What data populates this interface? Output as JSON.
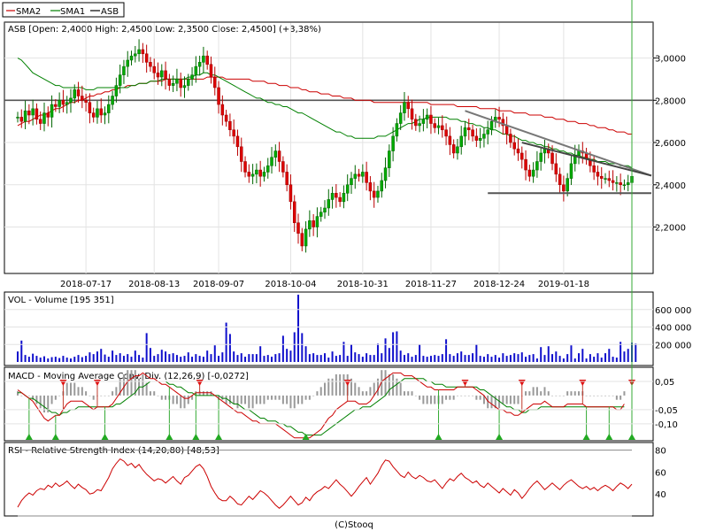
{
  "legend": [
    {
      "label": "SMA2",
      "color": "#cc0000"
    },
    {
      "label": "SMA1",
      "color": "#008000"
    },
    {
      "label": "ASB",
      "color": "#000000"
    }
  ],
  "footer": "(C)Stooq",
  "chart_data": [
    {
      "type": "candlestick",
      "title": "ASB [Open: 2,4000  High: 2,4500  Low: 2,3500  Close: 2,4500]  (+3,38%)",
      "ylim": [
        1.98,
        3.17
      ],
      "yticks": [
        {
          "v": 3.0,
          "label": "3,0000"
        },
        {
          "v": 2.8,
          "label": "2,8000"
        },
        {
          "v": 2.6,
          "label": "2,6000"
        },
        {
          "v": 2.4,
          "label": "2,4000"
        },
        {
          "v": 2.2,
          "label": "2,2000"
        }
      ],
      "xticks": [
        {
          "i": 18,
          "label": "2018-07-17"
        },
        {
          "i": 36,
          "label": "2018-08-13"
        },
        {
          "i": 53,
          "label": "2018-09-07"
        },
        {
          "i": 72,
          "label": "2018-10-04"
        },
        {
          "i": 91,
          "label": "2018-10-31"
        },
        {
          "i": 109,
          "label": "2018-11-27"
        },
        {
          "i": 127,
          "label": "2018-12-24"
        },
        {
          "i": 144,
          "label": "2019-01-18"
        }
      ],
      "n_points": 163,
      "close": [
        2.72,
        2.7,
        2.75,
        2.73,
        2.76,
        2.71,
        2.69,
        2.74,
        2.72,
        2.78,
        2.77,
        2.8,
        2.78,
        2.79,
        2.81,
        2.85,
        2.82,
        2.8,
        2.79,
        2.74,
        2.72,
        2.76,
        2.73,
        2.74,
        2.78,
        2.82,
        2.87,
        2.92,
        2.96,
        2.99,
        3.01,
        3.02,
        3.04,
        3.02,
        2.98,
        2.96,
        2.93,
        2.91,
        2.94,
        2.9,
        2.87,
        2.88,
        2.9,
        2.86,
        2.87,
        2.9,
        2.92,
        2.96,
        2.98,
        3.01,
        2.97,
        2.91,
        2.86,
        2.78,
        2.73,
        2.7,
        2.66,
        2.63,
        2.58,
        2.51,
        2.46,
        2.44,
        2.45,
        2.47,
        2.44,
        2.46,
        2.49,
        2.53,
        2.56,
        2.51,
        2.46,
        2.4,
        2.32,
        2.22,
        2.17,
        2.11,
        2.19,
        2.23,
        2.2,
        2.25,
        2.27,
        2.29,
        2.33,
        2.36,
        2.34,
        2.32,
        2.36,
        2.4,
        2.43,
        2.45,
        2.44,
        2.46,
        2.41,
        2.37,
        2.34,
        2.37,
        2.42,
        2.48,
        2.56,
        2.63,
        2.69,
        2.74,
        2.79,
        2.76,
        2.71,
        2.68,
        2.69,
        2.71,
        2.73,
        2.69,
        2.67,
        2.68,
        2.66,
        2.63,
        2.59,
        2.55,
        2.58,
        2.63,
        2.67,
        2.66,
        2.63,
        2.61,
        2.62,
        2.64,
        2.66,
        2.7,
        2.72,
        2.71,
        2.68,
        2.64,
        2.6,
        2.57,
        2.55,
        2.52,
        2.47,
        2.44,
        2.47,
        2.51,
        2.55,
        2.57,
        2.55,
        2.5,
        2.45,
        2.4,
        2.37,
        2.43,
        2.5,
        2.54,
        2.56,
        2.55,
        2.52,
        2.49,
        2.46,
        2.44,
        2.43,
        2.43,
        2.42,
        2.41,
        2.41,
        2.4,
        2.4,
        2.41,
        2.44,
        2.48,
        2.5,
        2.47,
        2.42,
        2.37,
        2.45
      ],
      "sma1": [
        3.0,
        2.99,
        2.97,
        2.95,
        2.93,
        2.92,
        2.91,
        2.9,
        2.89,
        2.88,
        2.87,
        2.87,
        2.86,
        2.86,
        2.86,
        2.86,
        2.86,
        2.86,
        2.85,
        2.85,
        2.85,
        2.86,
        2.86,
        2.86,
        2.86,
        2.86,
        2.86,
        2.86,
        2.86,
        2.86,
        2.87,
        2.87,
        2.88,
        2.88,
        2.88,
        2.89,
        2.89,
        2.89,
        2.9,
        2.9,
        2.9,
        2.9,
        2.9,
        2.9,
        2.9,
        2.91,
        2.91,
        2.92,
        2.92,
        2.93,
        2.93,
        2.92,
        2.92,
        2.91,
        2.9,
        2.89,
        2.88,
        2.87,
        2.86,
        2.85,
        2.84,
        2.83,
        2.82,
        2.81,
        2.81,
        2.8,
        2.79,
        2.79,
        2.78,
        2.78,
        2.77,
        2.77,
        2.76,
        2.75,
        2.74,
        2.74,
        2.73,
        2.72,
        2.71,
        2.7,
        2.69,
        2.68,
        2.67,
        2.66,
        2.65,
        2.65,
        2.64,
        2.63,
        2.63,
        2.62,
        2.62,
        2.62,
        2.62,
        2.62,
        2.62,
        2.63,
        2.63,
        2.63,
        2.64,
        2.65,
        2.66,
        2.67,
        2.68,
        2.69,
        2.69,
        2.7,
        2.71,
        2.71,
        2.72,
        2.72,
        2.72,
        2.72,
        2.72,
        2.72,
        2.71,
        2.71,
        2.71,
        2.7,
        2.7,
        2.69,
        2.69,
        2.68,
        2.68,
        2.67,
        2.67,
        2.66,
        2.66,
        2.65,
        2.64,
        2.64,
        2.63,
        2.63,
        2.62,
        2.61,
        2.61,
        2.6,
        2.6,
        2.59,
        2.59,
        2.58,
        2.58,
        2.57,
        2.57,
        2.56,
        2.56,
        2.55,
        2.55,
        2.54,
        2.54,
        2.53,
        2.53,
        2.52,
        2.52,
        2.51,
        2.51,
        2.51,
        2.5,
        2.5,
        2.5,
        2.49,
        2.49,
        2.49,
        2.48
      ],
      "sma2": [
        2.68,
        2.69,
        2.7,
        2.7,
        2.71,
        2.72,
        2.73,
        2.73,
        2.74,
        2.75,
        2.76,
        2.76,
        2.77,
        2.78,
        2.79,
        2.79,
        2.8,
        2.8,
        2.81,
        2.82,
        2.82,
        2.83,
        2.83,
        2.84,
        2.84,
        2.85,
        2.85,
        2.86,
        2.86,
        2.87,
        2.87,
        2.87,
        2.88,
        2.88,
        2.88,
        2.89,
        2.89,
        2.89,
        2.89,
        2.9,
        2.9,
        2.9,
        2.9,
        2.9,
        2.9,
        2.9,
        2.9,
        2.9,
        2.9,
        2.9,
        2.91,
        2.91,
        2.91,
        2.91,
        2.91,
        2.9,
        2.9,
        2.9,
        2.9,
        2.9,
        2.9,
        2.9,
        2.89,
        2.89,
        2.89,
        2.89,
        2.88,
        2.88,
        2.88,
        2.87,
        2.87,
        2.87,
        2.86,
        2.86,
        2.86,
        2.85,
        2.85,
        2.84,
        2.84,
        2.84,
        2.83,
        2.83,
        2.83,
        2.82,
        2.82,
        2.82,
        2.81,
        2.81,
        2.81,
        2.8,
        2.8,
        2.8,
        2.8,
        2.8,
        2.79,
        2.79,
        2.79,
        2.79,
        2.79,
        2.79,
        2.79,
        2.79,
        2.79,
        2.79,
        2.79,
        2.79,
        2.79,
        2.79,
        2.79,
        2.78,
        2.78,
        2.78,
        2.78,
        2.78,
        2.78,
        2.78,
        2.77,
        2.77,
        2.77,
        2.77,
        2.77,
        2.77,
        2.76,
        2.76,
        2.76,
        2.76,
        2.76,
        2.75,
        2.75,
        2.75,
        2.75,
        2.74,
        2.74,
        2.74,
        2.74,
        2.73,
        2.73,
        2.73,
        2.73,
        2.72,
        2.72,
        2.72,
        2.71,
        2.71,
        2.71,
        2.7,
        2.7,
        2.7,
        2.69,
        2.69,
        2.69,
        2.68,
        2.68,
        2.67,
        2.67,
        2.67,
        2.66,
        2.66,
        2.65,
        2.65,
        2.65,
        2.64,
        2.64
      ],
      "horizontal_levels": [
        3.17,
        2.8
      ],
      "trendlines": [
        {
          "from_i": 118,
          "from_v": 2.75,
          "to_i": 162,
          "to_v": 2.46,
          "color": "#777777"
        },
        {
          "from_i": 124,
          "from_v": 2.36,
          "to_i": 162,
          "to_v": 2.36,
          "color": "#555555"
        },
        {
          "from_i": 133,
          "from_v": 2.6,
          "to_i": 162,
          "to_v": 2.46,
          "color": "#444444"
        }
      ]
    },
    {
      "type": "bar",
      "title": "VOL - Volume [195 351]",
      "ylim": [
        0,
        800000
      ],
      "yticks": [
        {
          "v": 600000,
          "label": "600 000"
        },
        {
          "v": 400000,
          "label": "400 000"
        },
        {
          "v": 200000,
          "label": "200 000"
        }
      ],
      "values": [
        120000,
        245000,
        80000,
        60000,
        95000,
        70000,
        50000,
        65000,
        40000,
        55000,
        60000,
        45000,
        70000,
        50000,
        40000,
        60000,
        80000,
        55000,
        70000,
        110000,
        90000,
        120000,
        150000,
        85000,
        60000,
        130000,
        80000,
        100000,
        70000,
        90000,
        60000,
        130000,
        80000,
        50000,
        330000,
        160000,
        70000,
        90000,
        140000,
        120000,
        90000,
        100000,
        80000,
        60000,
        70000,
        110000,
        60000,
        90000,
        70000,
        60000,
        130000,
        90000,
        190000,
        70000,
        110000,
        450000,
        320000,
        120000,
        80000,
        100000,
        60000,
        90000,
        90000,
        90000,
        180000,
        70000,
        80000,
        60000,
        90000,
        100000,
        300000,
        150000,
        130000,
        340000,
        770000,
        330000,
        180000,
        90000,
        100000,
        80000,
        80000,
        100000,
        50000,
        120000,
        70000,
        80000,
        230000,
        70000,
        200000,
        110000,
        90000,
        60000,
        100000,
        80000,
        80000,
        210000,
        100000,
        270000,
        160000,
        340000,
        350000,
        130000,
        80000,
        100000,
        60000,
        80000,
        200000,
        70000,
        60000,
        70000,
        80000,
        70000,
        90000,
        260000,
        90000,
        70000,
        100000,
        120000,
        80000,
        80000,
        100000,
        200000,
        70000,
        60000,
        90000,
        60000,
        80000,
        50000,
        100000,
        70000,
        80000,
        100000,
        90000,
        110000,
        60000,
        80000,
        90000,
        40000,
        170000,
        80000,
        180000,
        90000,
        120000,
        70000,
        40000,
        90000,
        190000,
        40000,
        100000,
        150000,
        40000,
        90000,
        60000,
        100000,
        50000,
        100000,
        150000,
        60000,
        50000,
        230000,
        120000,
        150000,
        220000,
        210000
      ]
    },
    {
      "type": "line",
      "title": "MACD - Moving Average Conv. Div. (12,26,9) [-0,0272]",
      "ylim": [
        -0.16,
        0.1
      ],
      "yticks": [
        {
          "v": 0.05,
          "label": "0,05"
        },
        {
          "v": -0.05,
          "label": "-0,05"
        },
        {
          "v": -0.1,
          "label": "-0,10"
        }
      ],
      "macd": [
        0.02,
        0.01,
        0.0,
        -0.01,
        -0.02,
        -0.04,
        -0.06,
        -0.08,
        -0.09,
        -0.08,
        -0.07,
        -0.07,
        -0.05,
        -0.03,
        -0.02,
        -0.02,
        -0.02,
        -0.02,
        -0.03,
        -0.04,
        -0.05,
        -0.04,
        -0.04,
        -0.04,
        -0.04,
        -0.03,
        -0.01,
        0.01,
        0.03,
        0.05,
        0.06,
        0.07,
        0.07,
        0.08,
        0.07,
        0.06,
        0.06,
        0.05,
        0.04,
        0.04,
        0.03,
        0.02,
        0.01,
        0.0,
        -0.01,
        -0.01,
        0.0,
        0.01,
        0.01,
        0.01,
        0.01,
        0.01,
        0.0,
        -0.01,
        -0.02,
        -0.03,
        -0.04,
        -0.05,
        -0.06,
        -0.06,
        -0.07,
        -0.08,
        -0.09,
        -0.09,
        -0.1,
        -0.1,
        -0.1,
        -0.1,
        -0.1,
        -0.11,
        -0.12,
        -0.13,
        -0.14,
        -0.15,
        -0.15,
        -0.15,
        -0.15,
        -0.15,
        -0.14,
        -0.13,
        -0.12,
        -0.1,
        -0.08,
        -0.07,
        -0.05,
        -0.04,
        -0.03,
        -0.02,
        -0.02,
        -0.02,
        -0.03,
        -0.03,
        -0.03,
        -0.02,
        0.0,
        0.02,
        0.05,
        0.06,
        0.07,
        0.08,
        0.08,
        0.08,
        0.07,
        0.07,
        0.07,
        0.06,
        0.05,
        0.04,
        0.03,
        0.03,
        0.02,
        0.02,
        0.02,
        0.02,
        0.02,
        0.02,
        0.03,
        0.03,
        0.03,
        0.03,
        0.03,
        0.02,
        0.01,
        0.0,
        -0.02,
        -0.03,
        -0.04,
        -0.05,
        -0.05,
        -0.06,
        -0.06,
        -0.07,
        -0.07,
        -0.06,
        -0.05,
        -0.04,
        -0.03,
        -0.03,
        -0.03,
        -0.02,
        -0.03,
        -0.04,
        -0.04,
        -0.04,
        -0.04,
        -0.03,
        -0.03,
        -0.03,
        -0.03,
        -0.03,
        -0.04,
        -0.04,
        -0.04,
        -0.04,
        -0.04,
        -0.04,
        -0.04,
        -0.04,
        -0.05,
        -0.05,
        -0.03
      ],
      "signal": [
        0.01,
        0.01,
        0.0,
        -0.01,
        -0.01,
        -0.02,
        -0.03,
        -0.04,
        -0.05,
        -0.06,
        -0.06,
        -0.07,
        -0.06,
        -0.06,
        -0.05,
        -0.05,
        -0.04,
        -0.04,
        -0.04,
        -0.04,
        -0.04,
        -0.04,
        -0.04,
        -0.04,
        -0.04,
        -0.04,
        -0.03,
        -0.03,
        -0.02,
        -0.01,
        0.0,
        0.01,
        0.03,
        0.03,
        0.04,
        0.05,
        0.05,
        0.05,
        0.05,
        0.05,
        0.04,
        0.04,
        0.03,
        0.03,
        0.02,
        0.01,
        0.01,
        0.0,
        0.0,
        0.0,
        0.0,
        0.0,
        0.0,
        0.0,
        -0.01,
        -0.01,
        -0.02,
        -0.03,
        -0.03,
        -0.04,
        -0.05,
        -0.05,
        -0.06,
        -0.07,
        -0.08,
        -0.08,
        -0.09,
        -0.09,
        -0.09,
        -0.1,
        -0.1,
        -0.11,
        -0.11,
        -0.12,
        -0.13,
        -0.13,
        -0.14,
        -0.14,
        -0.14,
        -0.14,
        -0.14,
        -0.13,
        -0.12,
        -0.11,
        -0.1,
        -0.09,
        -0.08,
        -0.07,
        -0.06,
        -0.05,
        -0.05,
        -0.04,
        -0.04,
        -0.04,
        -0.03,
        -0.02,
        -0.01,
        0.0,
        0.02,
        0.03,
        0.04,
        0.05,
        0.06,
        0.06,
        0.06,
        0.06,
        0.06,
        0.06,
        0.05,
        0.05,
        0.04,
        0.04,
        0.04,
        0.03,
        0.03,
        0.03,
        0.03,
        0.03,
        0.03,
        0.03,
        0.03,
        0.03,
        0.02,
        0.02,
        0.01,
        0.0,
        -0.01,
        -0.02,
        -0.03,
        -0.04,
        -0.04,
        -0.05,
        -0.05,
        -0.06,
        -0.06,
        -0.05,
        -0.05,
        -0.05,
        -0.04,
        -0.04,
        -0.04,
        -0.04,
        -0.04,
        -0.04,
        -0.04,
        -0.04,
        -0.04,
        -0.04,
        -0.04,
        -0.04,
        -0.04,
        -0.04,
        -0.04,
        -0.04,
        -0.04,
        -0.04,
        -0.04,
        -0.04,
        -0.04,
        -0.04,
        -0.04
      ],
      "sell_markers": [
        12,
        21,
        48,
        87,
        118,
        133,
        149,
        162
      ],
      "buy_markers": [
        3,
        10,
        23,
        40,
        47,
        53,
        76,
        111,
        127,
        150,
        156,
        162
      ]
    },
    {
      "type": "line",
      "title": "RSI - Relative Strength Index (14,20,80) [48,53]",
      "ylim": [
        20,
        87
      ],
      "yticks": [
        {
          "v": 80,
          "label": "80"
        },
        {
          "v": 60,
          "label": "60"
        },
        {
          "v": 40,
          "label": "40"
        }
      ],
      "levels": [
        80,
        20
      ],
      "values": [
        28,
        34,
        38,
        41,
        39,
        43,
        45,
        44,
        48,
        46,
        50,
        47,
        49,
        52,
        48,
        45,
        49,
        46,
        44,
        40,
        41,
        44,
        43,
        49,
        55,
        63,
        68,
        72,
        70,
        66,
        68,
        64,
        67,
        62,
        58,
        55,
        52,
        54,
        53,
        50,
        53,
        56,
        52,
        49,
        55,
        57,
        61,
        65,
        67,
        63,
        56,
        47,
        41,
        36,
        34,
        34,
        38,
        35,
        31,
        30,
        34,
        38,
        35,
        39,
        43,
        41,
        38,
        34,
        30,
        27,
        30,
        34,
        38,
        34,
        30,
        32,
        37,
        34,
        39,
        42,
        44,
        47,
        45,
        49,
        53,
        49,
        46,
        42,
        38,
        42,
        47,
        51,
        55,
        49,
        54,
        59,
        66,
        71,
        70,
        65,
        61,
        57,
        55,
        60,
        56,
        54,
        57,
        55,
        52,
        51,
        53,
        49,
        45,
        50,
        54,
        52,
        56,
        59,
        55,
        53,
        50,
        52,
        48,
        46,
        50,
        47,
        44,
        41,
        45,
        42,
        39,
        44,
        41,
        36,
        40,
        45,
        49,
        52,
        48,
        44,
        47,
        50,
        47,
        44,
        48,
        51,
        53,
        50,
        47,
        45,
        47,
        44,
        46,
        43,
        46,
        48,
        46,
        43,
        47,
        50,
        48,
        45,
        49
      ]
    }
  ]
}
